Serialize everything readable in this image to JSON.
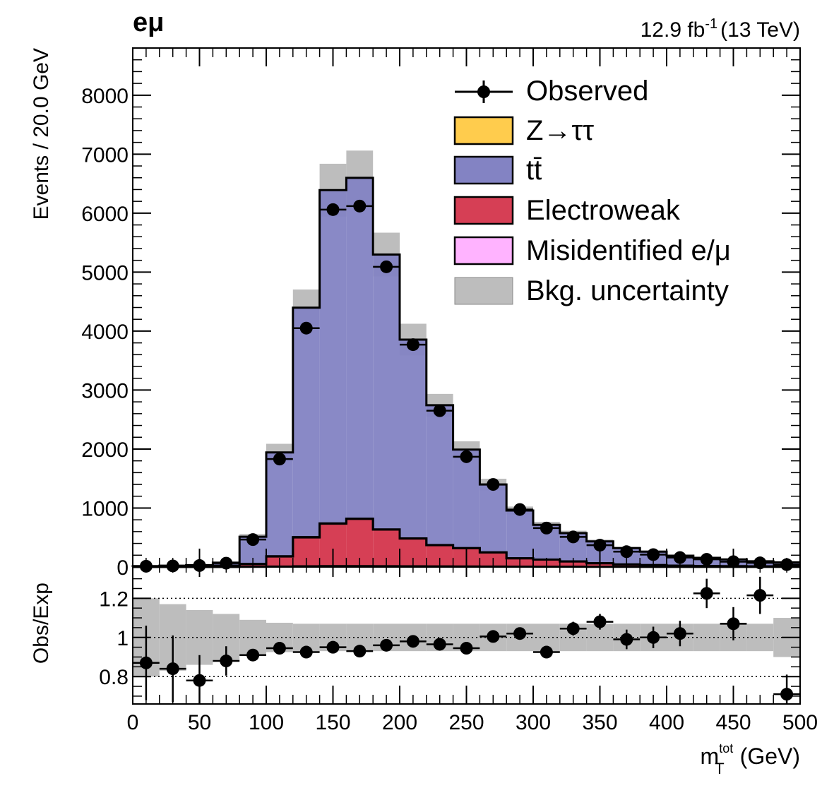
{
  "header": {
    "channel": "eμ",
    "lumi": "12.9 fb",
    "lumi_exp": "-1",
    "energy": "(13 TeV)"
  },
  "chart_data": [
    {
      "type": "bar",
      "subtype": "stacked-histogram",
      "ylabel": "Events / 20.0 GeV",
      "xlim": [
        0,
        500
      ],
      "ylim": [
        0,
        8800
      ],
      "yticks": [
        0,
        1000,
        2000,
        3000,
        4000,
        5000,
        6000,
        7000,
        8000
      ],
      "bin_edges": [
        0,
        20,
        40,
        60,
        80,
        100,
        120,
        140,
        160,
        180,
        200,
        220,
        240,
        260,
        280,
        300,
        320,
        340,
        360,
        380,
        400,
        420,
        440,
        460,
        480,
        500
      ],
      "series": [
        {
          "name": "Misidentified e/μ",
          "color": "#ffb3ff",
          "values": [
            0,
            0,
            0,
            0,
            3,
            8,
            12,
            15,
            15,
            14,
            12,
            10,
            9,
            7,
            6,
            5,
            4,
            3,
            3,
            2,
            2,
            2,
            1,
            1,
            1
          ]
        },
        {
          "name": "Electroweak",
          "color": "#d63f55",
          "values": [
            2,
            4,
            8,
            20,
            45,
            170,
            490,
            720,
            800,
            620,
            470,
            360,
            310,
            240,
            140,
            120,
            90,
            60,
            40,
            30,
            20,
            15,
            12,
            10,
            8
          ]
        },
        {
          "name": "Z→ττ",
          "color": "#ffcc4d",
          "values": [
            3,
            3,
            4,
            4,
            5,
            5,
            5,
            5,
            4,
            4,
            3,
            3,
            2,
            2,
            2,
            1,
            1,
            1,
            1,
            1,
            1,
            1,
            1,
            1,
            1
          ]
        },
        {
          "name": "tt̄",
          "color": "#8383c3",
          "values": [
            10,
            15,
            20,
            50,
            460,
            1760,
            3890,
            5650,
            5780,
            4660,
            3370,
            2370,
            1670,
            1150,
            810,
            590,
            480,
            370,
            276,
            228,
            168,
            137,
            114,
            86,
            68
          ]
        }
      ],
      "total_expected": [
        15,
        22,
        32,
        74,
        513,
        1943,
        4397,
        6390,
        6599,
        5298,
        3855,
        2743,
        1991,
        1399,
        958,
        716,
        575,
        434,
        320,
        261,
        191,
        155,
        128,
        98,
        78
      ],
      "observed": {
        "name": "Observed",
        "x": [
          10,
          30,
          50,
          70,
          90,
          110,
          130,
          150,
          170,
          190,
          210,
          230,
          250,
          270,
          290,
          310,
          330,
          350,
          370,
          390,
          410,
          430,
          450,
          470,
          490
        ],
        "y": [
          13,
          18,
          25,
          65,
          465,
          1830,
          4050,
          6060,
          6120,
          5090,
          3770,
          2650,
          1870,
          1400,
          975,
          660,
          510,
          370,
          260,
          210,
          160,
          130,
          90,
          70,
          40
        ]
      },
      "uncertainty": {
        "name": "Bkg. uncertainty",
        "color": "#bdbdbd"
      },
      "legend_position": "top-right"
    },
    {
      "type": "scatter",
      "xlabel": "m",
      "xlabel_sup": "tot",
      "xlabel_sub": "T",
      "xlabel_unit": "(GeV)",
      "ylabel": "Obs/Exp",
      "xlim": [
        0,
        500
      ],
      "ylim": [
        0.66,
        1.36
      ],
      "xticks": [
        0,
        50,
        100,
        150,
        200,
        250,
        300,
        350,
        400,
        450,
        500
      ],
      "yticks": [
        0.8,
        1,
        1.2
      ],
      "ytick_labels": [
        "0.8",
        "1",
        "1.2"
      ],
      "reference_lines": [
        0.8,
        1,
        1.2
      ],
      "x": [
        10,
        30,
        50,
        70,
        90,
        110,
        130,
        150,
        170,
        190,
        210,
        230,
        250,
        270,
        290,
        310,
        330,
        350,
        370,
        390,
        410,
        430,
        450,
        470,
        490
      ],
      "y": [
        0.87,
        0.84,
        0.78,
        0.88,
        0.91,
        0.945,
        0.925,
        0.95,
        0.93,
        0.96,
        0.98,
        0.965,
        0.945,
        1.005,
        1.02,
        0.925,
        1.045,
        1.08,
        0.99,
        1.0,
        1.02,
        1.225,
        1.07,
        1.215,
        0.71
      ],
      "y_err": [
        0.19,
        0.17,
        0.13,
        0.075,
        0.03,
        0.02,
        0.015,
        0.01,
        0.01,
        0.012,
        0.014,
        0.017,
        0.02,
        0.022,
        0.025,
        0.03,
        0.035,
        0.04,
        0.05,
        0.055,
        0.065,
        0.075,
        0.085,
        0.095,
        0.1
      ],
      "band_half_width": [
        0.2,
        0.17,
        0.14,
        0.12,
        0.09,
        0.075,
        0.07,
        0.07,
        0.07,
        0.07,
        0.07,
        0.07,
        0.07,
        0.07,
        0.07,
        0.07,
        0.07,
        0.07,
        0.07,
        0.07,
        0.07,
        0.07,
        0.07,
        0.07,
        0.1
      ]
    }
  ]
}
